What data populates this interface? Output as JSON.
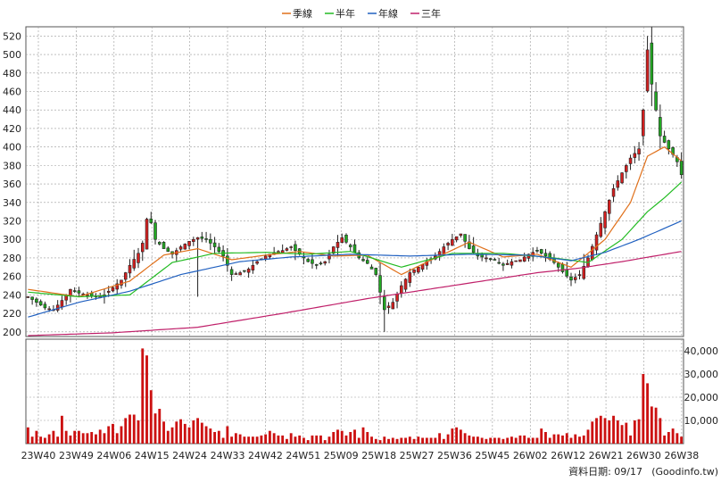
{
  "legend": [
    {
      "label": "季線",
      "color": "#e0701a"
    },
    {
      "label": "半年",
      "color": "#22bb22"
    },
    {
      "label": "年線",
      "color": "#2060c0"
    },
    {
      "label": "三年",
      "color": "#c0206a"
    }
  ],
  "footer": {
    "date_label": "資料日期: 09/17",
    "source": "(Goodinfo.tw)"
  },
  "colors": {
    "up": "#d42020",
    "down": "#22a822",
    "volume": "#cc1111",
    "grid": "#999999"
  },
  "chart_data": [
    {
      "type": "candlestick",
      "ylim": [
        195,
        530
      ],
      "yticks": [
        "200",
        "220",
        "240",
        "260",
        "280",
        "300",
        "320",
        "340",
        "360",
        "380",
        "400",
        "420",
        "440",
        "460",
        "480",
        "500",
        "520"
      ],
      "categories": [
        "23W40",
        "23W49",
        "24W06",
        "24W15",
        "24W24",
        "24W33",
        "24W42",
        "24W51",
        "25W09",
        "25W18",
        "25W27",
        "25W36",
        "25W45",
        "26W02",
        "26W12",
        "26W21",
        "26W30",
        "26W38"
      ],
      "n_weeks": 155,
      "price_anchors": [
        [
          0,
          238
        ],
        [
          2,
          232
        ],
        [
          4,
          226
        ],
        [
          6,
          224
        ],
        [
          8,
          234
        ],
        [
          10,
          246
        ],
        [
          12,
          242
        ],
        [
          14,
          240
        ],
        [
          16,
          238
        ],
        [
          18,
          240
        ],
        [
          20,
          248
        ],
        [
          22,
          256
        ],
        [
          24,
          272
        ],
        [
          26,
          285
        ],
        [
          27,
          296
        ],
        [
          28,
          322
        ],
        [
          29,
          318
        ],
        [
          30,
          300
        ],
        [
          32,
          290
        ],
        [
          34,
          284
        ],
        [
          36,
          292
        ],
        [
          38,
          298
        ],
        [
          40,
          302
        ],
        [
          42,
          300
        ],
        [
          44,
          292
        ],
        [
          46,
          282
        ],
        [
          48,
          262
        ],
        [
          50,
          264
        ],
        [
          52,
          268
        ],
        [
          54,
          276
        ],
        [
          56,
          282
        ],
        [
          58,
          286
        ],
        [
          60,
          288
        ],
        [
          62,
          292
        ],
        [
          64,
          284
        ],
        [
          66,
          276
        ],
        [
          68,
          272
        ],
        [
          70,
          276
        ],
        [
          72,
          292
        ],
        [
          74,
          302
        ],
        [
          76,
          292
        ],
        [
          78,
          280
        ],
        [
          80,
          274
        ],
        [
          82,
          262
        ],
        [
          84,
          224
        ],
        [
          86,
          232
        ],
        [
          88,
          250
        ],
        [
          90,
          264
        ],
        [
          92,
          270
        ],
        [
          94,
          276
        ],
        [
          96,
          282
        ],
        [
          98,
          292
        ],
        [
          100,
          300
        ],
        [
          102,
          306
        ],
        [
          104,
          290
        ],
        [
          106,
          282
        ],
        [
          108,
          280
        ],
        [
          110,
          278
        ],
        [
          112,
          272
        ],
        [
          114,
          276
        ],
        [
          116,
          278
        ],
        [
          118,
          284
        ],
        [
          120,
          288
        ],
        [
          122,
          282
        ],
        [
          124,
          275
        ],
        [
          126,
          265
        ],
        [
          128,
          256
        ],
        [
          130,
          262
        ],
        [
          132,
          280
        ],
        [
          134,
          305
        ],
        [
          136,
          330
        ],
        [
          138,
          355
        ],
        [
          140,
          372
        ],
        [
          142,
          388
        ],
        [
          144,
          398
        ],
        [
          145,
          440
        ],
        [
          146,
          505
        ],
        [
          147,
          468
        ],
        [
          148,
          440
        ],
        [
          149,
          412
        ],
        [
          150,
          405
        ],
        [
          151,
          398
        ],
        [
          152,
          392
        ],
        [
          153,
          384
        ],
        [
          154,
          370
        ]
      ],
      "ma_quarter_anchors": [
        [
          0,
          246
        ],
        [
          12,
          238
        ],
        [
          24,
          255
        ],
        [
          32,
          283
        ],
        [
          40,
          290
        ],
        [
          48,
          278
        ],
        [
          56,
          283
        ],
        [
          64,
          287
        ],
        [
          72,
          282
        ],
        [
          80,
          283
        ],
        [
          88,
          262
        ],
        [
          96,
          280
        ],
        [
          104,
          297
        ],
        [
          112,
          281
        ],
        [
          120,
          284
        ],
        [
          128,
          270
        ],
        [
          136,
          300
        ],
        [
          142,
          340
        ],
        [
          146,
          390
        ],
        [
          150,
          400
        ],
        [
          154,
          385
        ]
      ],
      "ma_half_anchors": [
        [
          0,
          243
        ],
        [
          12,
          238
        ],
        [
          24,
          240
        ],
        [
          34,
          275
        ],
        [
          44,
          285
        ],
        [
          56,
          286
        ],
        [
          66,
          284
        ],
        [
          76,
          287
        ],
        [
          88,
          270
        ],
        [
          100,
          285
        ],
        [
          112,
          285
        ],
        [
          124,
          280
        ],
        [
          132,
          275
        ],
        [
          140,
          300
        ],
        [
          146,
          330
        ],
        [
          150,
          345
        ],
        [
          154,
          362
        ]
      ],
      "ma_year_anchors": [
        [
          0,
          216
        ],
        [
          12,
          232
        ],
        [
          24,
          244
        ],
        [
          36,
          262
        ],
        [
          50,
          276
        ],
        [
          62,
          281
        ],
        [
          76,
          284
        ],
        [
          90,
          282
        ],
        [
          104,
          284
        ],
        [
          118,
          283
        ],
        [
          128,
          277
        ],
        [
          136,
          286
        ],
        [
          144,
          300
        ],
        [
          150,
          312
        ],
        [
          154,
          320
        ]
      ],
      "ma_3year_anchors": [
        [
          0,
          196
        ],
        [
          20,
          199
        ],
        [
          40,
          205
        ],
        [
          60,
          220
        ],
        [
          80,
          236
        ],
        [
          100,
          250
        ],
        [
          120,
          264
        ],
        [
          130,
          269
        ],
        [
          140,
          276
        ],
        [
          154,
          287
        ]
      ],
      "volume_ylim": [
        0,
        45000
      ],
      "volume_ticks": [
        "10,000",
        "20,000",
        "30,000",
        "40,000"
      ],
      "volume_anchors": [
        [
          0,
          7000
        ],
        [
          1,
          3000
        ],
        [
          2,
          5500
        ],
        [
          3,
          3000
        ],
        [
          4,
          2500
        ],
        [
          5,
          4000
        ],
        [
          6,
          5500
        ],
        [
          7,
          3000
        ],
        [
          8,
          12000
        ],
        [
          9,
          5500
        ],
        [
          10,
          3500
        ],
        [
          11,
          5500
        ],
        [
          12,
          5500
        ],
        [
          13,
          4500
        ],
        [
          14,
          4500
        ],
        [
          15,
          5000
        ],
        [
          16,
          4000
        ],
        [
          17,
          6000
        ],
        [
          18,
          4500
        ],
        [
          19,
          7500
        ],
        [
          20,
          8500
        ],
        [
          21,
          4500
        ],
        [
          22,
          7500
        ],
        [
          23,
          11000
        ],
        [
          24,
          12500
        ],
        [
          25,
          12500
        ],
        [
          26,
          10000
        ],
        [
          27,
          41000
        ],
        [
          28,
          38000
        ],
        [
          29,
          23000
        ],
        [
          30,
          13000
        ],
        [
          31,
          15000
        ],
        [
          32,
          9500
        ],
        [
          33,
          5500
        ],
        [
          34,
          7000
        ],
        [
          35,
          9500
        ],
        [
          36,
          10500
        ],
        [
          37,
          8500
        ],
        [
          38,
          7000
        ],
        [
          39,
          10000
        ],
        [
          40,
          11000
        ],
        [
          41,
          9000
        ],
        [
          42,
          7500
        ],
        [
          43,
          6500
        ],
        [
          44,
          5000
        ],
        [
          45,
          5500
        ],
        [
          46,
          2500
        ],
        [
          47,
          7500
        ],
        [
          48,
          3000
        ],
        [
          49,
          4500
        ],
        [
          50,
          4000
        ],
        [
          51,
          3000
        ],
        [
          52,
          3000
        ],
        [
          53,
          3000
        ],
        [
          54,
          3000
        ],
        [
          55,
          3500
        ],
        [
          56,
          4000
        ],
        [
          57,
          5500
        ],
        [
          58,
          4500
        ],
        [
          59,
          3500
        ],
        [
          60,
          3500
        ],
        [
          61,
          2000
        ],
        [
          62,
          4500
        ],
        [
          63,
          3000
        ],
        [
          64,
          3500
        ],
        [
          65,
          2500
        ],
        [
          66,
          1500
        ],
        [
          67,
          3500
        ],
        [
          68,
          3500
        ],
        [
          69,
          3500
        ],
        [
          70,
          1500
        ],
        [
          71,
          3000
        ],
        [
          72,
          5000
        ],
        [
          73,
          6000
        ],
        [
          74,
          5500
        ],
        [
          75,
          3500
        ],
        [
          76,
          5000
        ],
        [
          77,
          6000
        ],
        [
          78,
          2500
        ],
        [
          79,
          7000
        ],
        [
          80,
          5000
        ],
        [
          81,
          3000
        ],
        [
          82,
          2000
        ],
        [
          83,
          1500
        ],
        [
          84,
          3000
        ],
        [
          85,
          2000
        ],
        [
          86,
          2500
        ],
        [
          87,
          2000
        ],
        [
          88,
          2500
        ],
        [
          89,
          2500
        ],
        [
          90,
          3000
        ],
        [
          91,
          2000
        ],
        [
          92,
          3000
        ],
        [
          93,
          2500
        ],
        [
          94,
          2500
        ],
        [
          95,
          2500
        ],
        [
          96,
          2500
        ],
        [
          97,
          4500
        ],
        [
          98,
          2000
        ],
        [
          99,
          4000
        ],
        [
          100,
          6500
        ],
        [
          101,
          7000
        ],
        [
          102,
          6000
        ],
        [
          103,
          4500
        ],
        [
          104,
          3500
        ],
        [
          105,
          3000
        ],
        [
          106,
          3000
        ],
        [
          107,
          2500
        ],
        [
          108,
          2000
        ],
        [
          109,
          2500
        ],
        [
          110,
          2500
        ],
        [
          111,
          2500
        ],
        [
          112,
          2000
        ],
        [
          113,
          2500
        ],
        [
          114,
          3000
        ],
        [
          115,
          2500
        ],
        [
          116,
          3500
        ],
        [
          117,
          3500
        ],
        [
          118,
          2500
        ],
        [
          119,
          2500
        ],
        [
          120,
          2500
        ],
        [
          121,
          6500
        ],
        [
          122,
          5000
        ],
        [
          123,
          2500
        ],
        [
          124,
          4000
        ],
        [
          125,
          4000
        ],
        [
          126,
          3500
        ],
        [
          127,
          4500
        ],
        [
          128,
          2500
        ],
        [
          129,
          4000
        ],
        [
          130,
          3000
        ],
        [
          131,
          3500
        ],
        [
          132,
          6000
        ],
        [
          133,
          9500
        ],
        [
          134,
          11000
        ],
        [
          135,
          12000
        ],
        [
          136,
          11000
        ],
        [
          137,
          10000
        ],
        [
          138,
          12000
        ],
        [
          139,
          10000
        ],
        [
          140,
          8000
        ],
        [
          141,
          9000
        ],
        [
          142,
          3500
        ],
        [
          143,
          10000
        ],
        [
          144,
          10500
        ],
        [
          145,
          30000
        ],
        [
          146,
          26000
        ],
        [
          147,
          16000
        ],
        [
          148,
          15500
        ],
        [
          149,
          11000
        ],
        [
          150,
          3500
        ],
        [
          151,
          5000
        ],
        [
          152,
          6500
        ],
        [
          153,
          4500
        ],
        [
          154,
          3000
        ]
      ]
    }
  ]
}
